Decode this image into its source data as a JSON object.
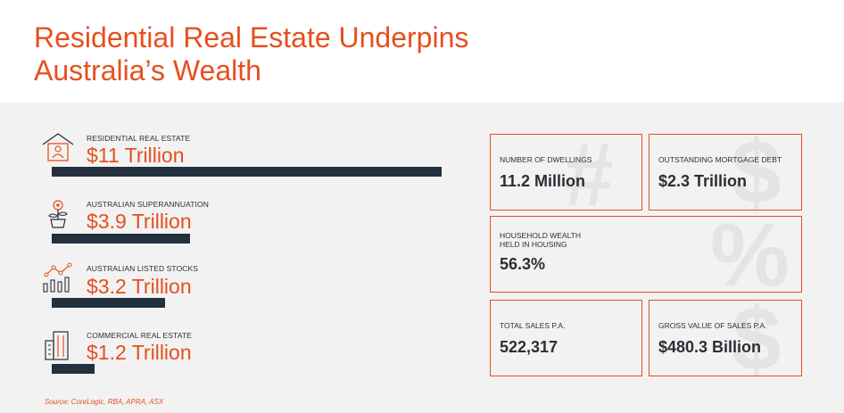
{
  "title": {
    "line1": "Residential Real Estate Underpins",
    "line2": "Australia’s Wealth"
  },
  "chart_data": {
    "type": "bar",
    "orientation": "horizontal",
    "unit": "Trillion",
    "categories": [
      "RESIDENTIAL REAL ESTATE",
      "AUSTRALIAN SUPERANNUATION",
      "AUSTRALIAN LISTED STOCKS",
      "COMMERCIAL REAL ESTATE"
    ],
    "values": [
      11,
      3.9,
      3.2,
      1.2
    ],
    "value_labels": [
      "$11 Trillion",
      "$3.9 Trillion",
      "$3.2 Trillion",
      "$1.2 Trillion"
    ],
    "icons": [
      "house-icon",
      "plant-icon",
      "stocks-icon",
      "building-icon"
    ],
    "bar_color": "#23303d",
    "label_color": "#e5501e"
  },
  "stats": {
    "dwellings": {
      "label": "NUMBER OF DWELLINGS",
      "value": "11.2 Million"
    },
    "mortgage": {
      "label": "OUTSTANDING MORTGAGE DEBT",
      "value": "$2.3 Trillion"
    },
    "wealth": {
      "label1": "HOUSEHOLD WEALTH",
      "label2": "HELD IN HOUSING",
      "value": "56.3%"
    },
    "sales": {
      "label": "TOTAL SALES P.A.",
      "value": "522,317"
    },
    "gross": {
      "label": "GROSS VALUE OF SALES P.A.",
      "value": "$480.3 Billion"
    }
  },
  "background_glyphs": {
    "hash": "#",
    "dollar": "$",
    "percent": "%",
    "dollar2": "$"
  },
  "source": "Source: CoreLogic, RBA, APRA, ASX",
  "colors": {
    "accent": "#e5501e",
    "dark": "#23303d",
    "panel": "#f2f2f2"
  }
}
